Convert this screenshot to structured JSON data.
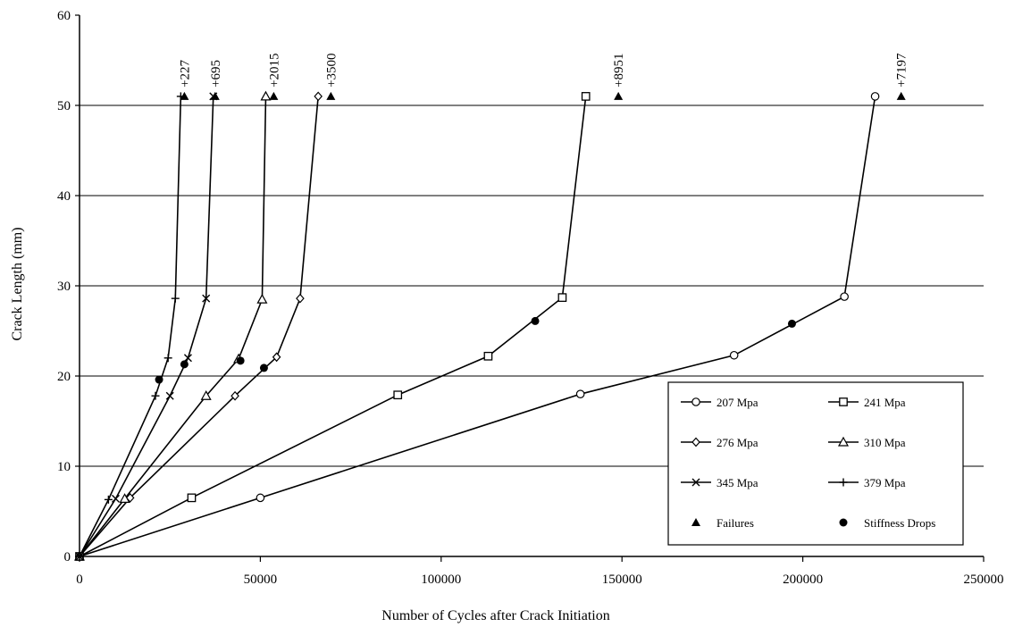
{
  "chart_data": {
    "type": "line",
    "title": "",
    "xlabel": "Number of Cycles after Crack Initiation",
    "ylabel": "Crack Length (mm)",
    "xlim": [
      0,
      250000
    ],
    "ylim": [
      0,
      60
    ],
    "xticks": [
      0,
      50000,
      100000,
      150000,
      200000,
      250000
    ],
    "yticks": [
      0,
      10,
      20,
      30,
      40,
      50,
      60
    ],
    "grid": "horizontal",
    "legend_position": "bottom-right",
    "series": [
      {
        "name": "207 Mpa",
        "marker": "circle-open",
        "x": [
          0,
          50000,
          138500,
          181000,
          211500,
          220000
        ],
        "y": [
          0,
          6.5,
          18.0,
          22.3,
          28.8,
          51.0
        ]
      },
      {
        "name": "241 Mpa",
        "marker": "square-open",
        "x": [
          0,
          31000,
          88000,
          113000,
          133500,
          140000
        ],
        "y": [
          0,
          6.5,
          17.9,
          22.2,
          28.7,
          51.0
        ]
      },
      {
        "name": "276 Mpa",
        "marker": "diamond-open",
        "x": [
          0,
          14000,
          43000,
          54500,
          61000,
          66000
        ],
        "y": [
          0,
          6.5,
          17.8,
          22.1,
          28.6,
          51.0
        ]
      },
      {
        "name": "310 Mpa",
        "marker": "triangle-open",
        "x": [
          0,
          12500,
          35000,
          44000,
          50500,
          51500
        ],
        "y": [
          0,
          6.4,
          17.8,
          21.9,
          28.5,
          51.0
        ]
      },
      {
        "name": "345 Mpa",
        "marker": "x",
        "x": [
          0,
          10000,
          25000,
          30000,
          35000,
          37000
        ],
        "y": [
          0,
          6.4,
          17.8,
          22.0,
          28.6,
          51.0
        ]
      },
      {
        "name": "379 Mpa",
        "marker": "plus",
        "x": [
          0,
          8000,
          21000,
          24500,
          26500,
          28000
        ],
        "y": [
          0,
          6.3,
          17.8,
          22.0,
          28.6,
          51.0
        ]
      }
    ],
    "failures": {
      "name": "Failures",
      "marker": "triangle-filled",
      "points": [
        {
          "x": 29000,
          "y": 51,
          "label": "+227"
        },
        {
          "x": 37500,
          "y": 51,
          "label": "+695"
        },
        {
          "x": 53700,
          "y": 51,
          "label": "+2015"
        },
        {
          "x": 69500,
          "y": 51,
          "label": "+3500"
        },
        {
          "x": 149000,
          "y": 51,
          "label": "+8951"
        },
        {
          "x": 227200,
          "y": 51,
          "label": "+7197"
        }
      ]
    },
    "stiffness_drops": {
      "name": "Stiffness Drops",
      "marker": "circle-filled",
      "points": [
        {
          "x": 22000,
          "y": 19.6
        },
        {
          "x": 29000,
          "y": 21.3
        },
        {
          "x": 44500,
          "y": 21.7
        },
        {
          "x": 51000,
          "y": 20.9
        },
        {
          "x": 126000,
          "y": 26.1
        },
        {
          "x": 197000,
          "y": 25.8
        }
      ]
    }
  }
}
